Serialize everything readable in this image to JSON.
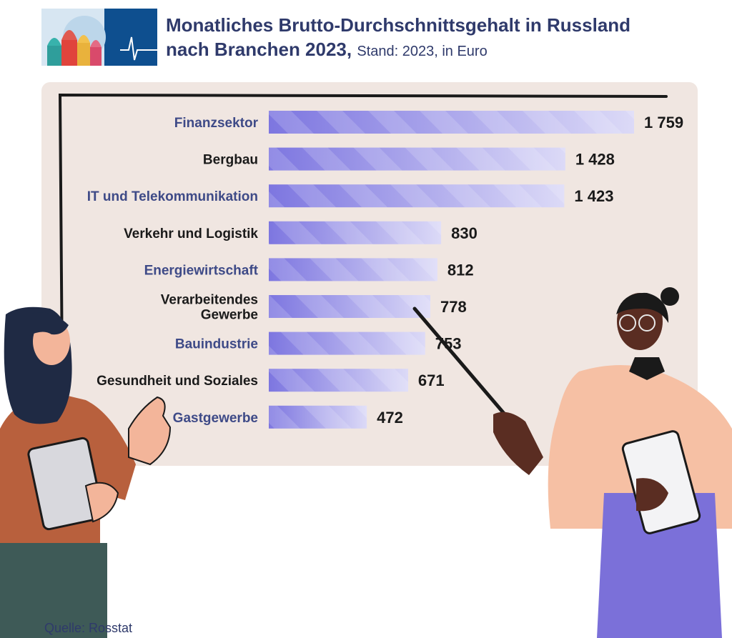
{
  "header": {
    "title_line1": "Monatliches Brutto-Durchschnittsgehalt in Russland",
    "title_line2": "nach Branchen 2023,",
    "subtitle": "Stand: 2023, in Euro"
  },
  "source": "Quelle: Rosstat",
  "colors": {
    "title": "#2f3a6b",
    "board": "#f0e6e1",
    "bar_dark": "#7d76e0",
    "bar_light": "#dcdaf7",
    "label_blue": "#3e4a87",
    "label_black": "#1a1a1a"
  },
  "chart_data": {
    "type": "bar",
    "orientation": "horizontal",
    "title": "Monatliches Brutto-Durchschnittsgehalt in Russland nach Branchen 2023",
    "unit": "Euro",
    "xlim": [
      0,
      1759
    ],
    "categories": [
      "Finanzsektor",
      "Bergbau",
      "IT und Telekommunikation",
      "Verkehr und Logistik",
      "Energiewirtschaft",
      "Verarbeitendes Gewerbe",
      "Bauindustrie",
      "Gesundheit und Soziales",
      "Gastgewerbe"
    ],
    "label_lines": [
      [
        "Finanzsektor"
      ],
      [
        "Bergbau"
      ],
      [
        "IT und Telekommunikation"
      ],
      [
        "Verkehr und Logistik"
      ],
      [
        "Energiewirtschaft"
      ],
      [
        "Verarbeitendes",
        "Gewerbe"
      ],
      [
        "Bauindustrie"
      ],
      [
        "Gesundheit und Soziales"
      ],
      [
        "Gastgewerbe"
      ]
    ],
    "values": [
      1759,
      1428,
      1423,
      830,
      812,
      778,
      753,
      671,
      472
    ],
    "value_labels": [
      "1 759",
      "1 428",
      "1 423",
      "830",
      "812",
      "778",
      "753",
      "671",
      "472"
    ]
  }
}
